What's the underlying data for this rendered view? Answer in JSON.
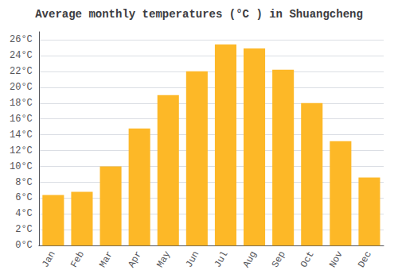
{
  "chart_data": {
    "type": "bar",
    "title": "Average monthly temperatures (°C ) in Shuangcheng",
    "categories": [
      "Jan",
      "Feb",
      "Mar",
      "Apr",
      "May",
      "Jun",
      "Jul",
      "Aug",
      "Sep",
      "Oct",
      "Nov",
      "Dec"
    ],
    "values": [
      6.4,
      6.8,
      10.0,
      14.8,
      19.0,
      22.0,
      25.4,
      24.9,
      22.2,
      18.0,
      13.2,
      8.6
    ],
    "color": "#FDB827",
    "ylim": [
      0,
      27
    ],
    "yticks": [
      {
        "value": 0,
        "label": "0°C"
      },
      {
        "value": 2,
        "label": "2°C"
      },
      {
        "value": 4,
        "label": "4°C"
      },
      {
        "value": 6,
        "label": "6°C"
      },
      {
        "value": 8,
        "label": "8°C"
      },
      {
        "value": 10,
        "label": "10°C"
      },
      {
        "value": 12,
        "label": "12°C"
      },
      {
        "value": 14,
        "label": "14°C"
      },
      {
        "value": 16,
        "label": "16°C"
      },
      {
        "value": 18,
        "label": "18°C"
      },
      {
        "value": 20,
        "label": "20°C"
      },
      {
        "value": 22,
        "label": "22°C"
      },
      {
        "value": 24,
        "label": "24°C"
      },
      {
        "value": 26,
        "label": "26°C"
      }
    ],
    "grid": true
  }
}
